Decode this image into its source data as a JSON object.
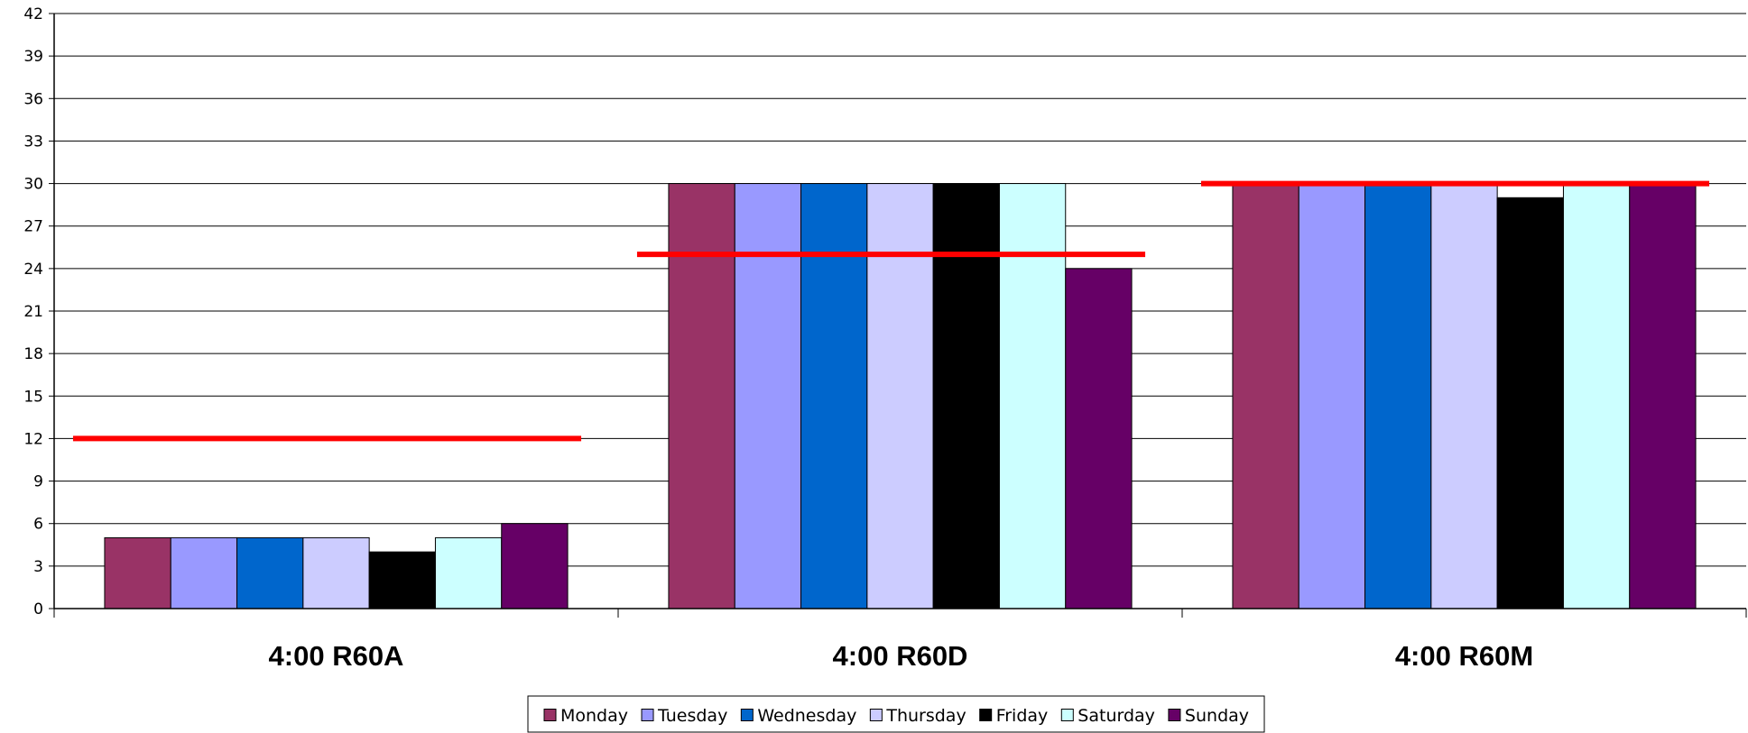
{
  "chart_data": {
    "type": "bar",
    "categories": [
      "4:00 R60A",
      "4:00 R60D",
      "4:00 R60M"
    ],
    "series": [
      {
        "name": "Monday",
        "color": "#993366",
        "values": [
          5,
          30,
          30
        ]
      },
      {
        "name": "Tuesday",
        "color": "#9999ff",
        "values": [
          5,
          30,
          30
        ]
      },
      {
        "name": "Wednesday",
        "color": "#0066cc",
        "values": [
          5,
          30,
          30
        ]
      },
      {
        "name": "Thursday",
        "color": "#ccccff",
        "values": [
          5,
          30,
          30
        ]
      },
      {
        "name": "Friday",
        "color": "#000000",
        "values": [
          4,
          30,
          29
        ]
      },
      {
        "name": "Saturday",
        "color": "#ccffff",
        "values": [
          5,
          30,
          30
        ]
      },
      {
        "name": "Sunday",
        "color": "#660066",
        "values": [
          6,
          24,
          30
        ]
      }
    ],
    "target_lines": {
      "color": "#ff0000",
      "values": [
        12,
        25,
        30
      ]
    },
    "y_ticks": [
      "0",
      "3",
      "6",
      "9",
      "12",
      "15",
      "18",
      "21",
      "24",
      "27",
      "30",
      "33",
      "36",
      "39",
      "42"
    ],
    "ylim": [
      0,
      42
    ],
    "grid": true,
    "legend_position": "bottom-center",
    "title": "",
    "xlabel": "",
    "ylabel": ""
  }
}
